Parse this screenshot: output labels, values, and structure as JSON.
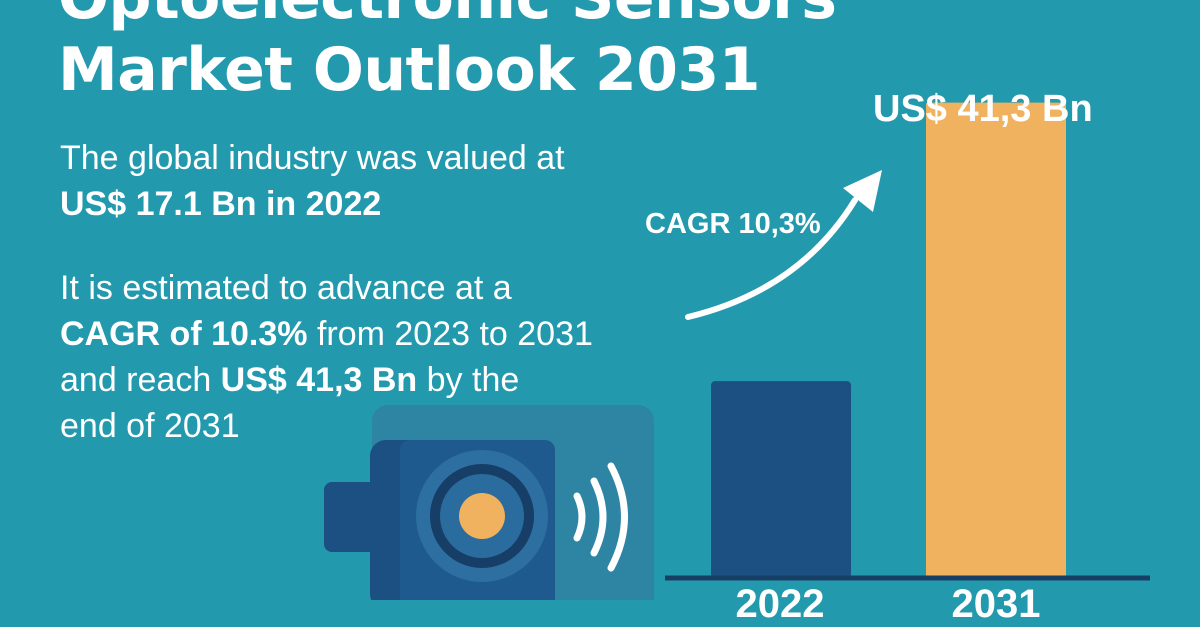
{
  "infographic": {
    "title_line1": "Optoelectronic Sensors",
    "title_line2": "Market Outlook 2031",
    "p1_text": "The global industry was valued at",
    "p1_bold": "US$ 17.1 Bn in 2022",
    "p2_line1": "It is estimated to advance at a",
    "p2_bold1": "CAGR of 10.3%",
    "p2_rest2": " from 2023 to 2031",
    "p2_line3_start": "and reach ",
    "p2_bold2": "US$ 41,3 Bn",
    "p2_line3_end": " by the",
    "p2_line4": "end of 2031",
    "cagr_label": "CAGR 10,3%",
    "bar_value_label": "US$ 41,3 Bn"
  },
  "icons": [
    "camera-sensor-icon",
    "signal-waves-icon",
    "growth-arrow-icon"
  ],
  "colors": {
    "background": "#2399ae",
    "bar_start": "#1c4f82",
    "bar_end": "#f0b25e",
    "baseline": "#173f66",
    "text": "#ffffff"
  },
  "chart_data": {
    "type": "bar",
    "categories": [
      "2022",
      "2031"
    ],
    "values": [
      17.1,
      41.3
    ],
    "title": "",
    "xlabel": "",
    "ylabel": "",
    "ylim": [
      0,
      45
    ],
    "annotations": [
      "CAGR 10,3%",
      "US$ 41,3 Bn"
    ]
  }
}
